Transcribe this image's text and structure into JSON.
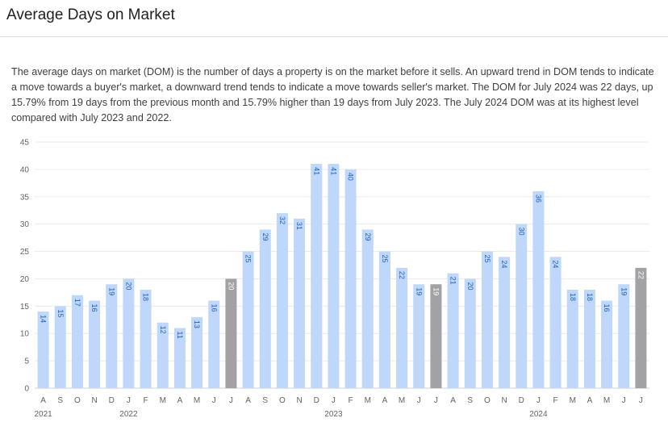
{
  "header": {
    "title": "Average Days on Market"
  },
  "description": "The average days on market (DOM) is the number of days a property is on the market before it sells. An upward trend in DOM tends to indicate a move towards a buyer's market, a downward trend tends to indicate a move towards seller's market. The DOM for July 2024 was 22 days, up 15.79% from 19 days from the previous month and 15.79% higher than 19 days from July 2023. The July 2024 DOM was at its highest level compared with July 2023 and 2022.",
  "colors": {
    "bar": "#bfd7fb",
    "highlight": "#a2a2a4",
    "label_on_bar": "#1f5fbf",
    "label_on_highlight": "#ffffff"
  },
  "chart_data": {
    "type": "bar",
    "categories": [
      "A",
      "S",
      "O",
      "N",
      "D",
      "J",
      "F",
      "M",
      "A",
      "M",
      "J",
      "J",
      "A",
      "S",
      "O",
      "N",
      "D",
      "J",
      "F",
      "M",
      "A",
      "M",
      "J",
      "J",
      "A",
      "S",
      "O",
      "N",
      "D",
      "J",
      "F",
      "M",
      "A",
      "M",
      "J",
      "J"
    ],
    "values": [
      14,
      15,
      17,
      16,
      19,
      20,
      18,
      12,
      11,
      13,
      16,
      20,
      25,
      29,
      32,
      31,
      41,
      41,
      40,
      29,
      25,
      22,
      19,
      19,
      21,
      20,
      25,
      24,
      30,
      36,
      24,
      18,
      18,
      16,
      19,
      22
    ],
    "highlighted_indices": [
      11,
      23,
      35
    ],
    "year_labels": [
      {
        "label": "2021",
        "index": 0
      },
      {
        "label": "2022",
        "index": 5
      },
      {
        "label": "2023",
        "index": 17
      },
      {
        "label": "2024",
        "index": 29
      }
    ],
    "ylim": [
      0,
      45
    ],
    "yticks": [
      0,
      5,
      10,
      15,
      20,
      25,
      30,
      35,
      40,
      45
    ],
    "grid": true,
    "title": "",
    "xlabel": "",
    "ylabel": ""
  }
}
